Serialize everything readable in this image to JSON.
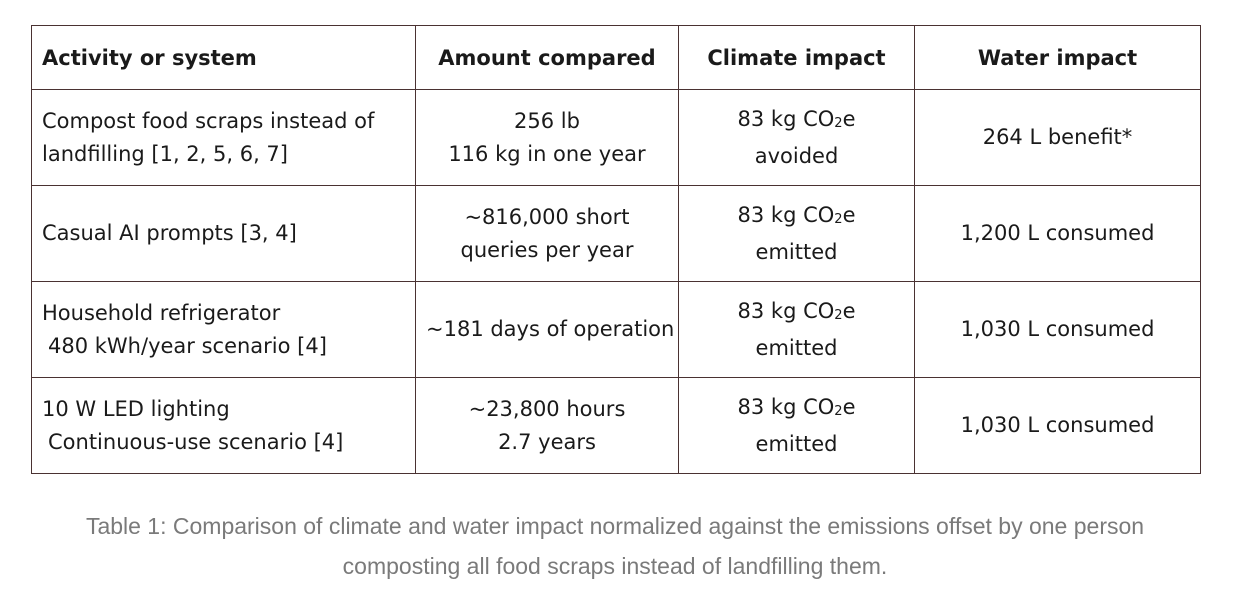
{
  "table": {
    "headers": [
      "Activity or system",
      "Amount compared",
      "Climate impact",
      "Water impact"
    ],
    "rows": [
      {
        "activity": [
          "Compost food scraps instead of",
          "landfilling [1, 2, 5, 6, 7]"
        ],
        "amount": [
          "256 lb",
          "116 kg in one year"
        ],
        "climate": {
          "value": "83 kg CO",
          "sub": "2",
          "unit": "e",
          "effect": "avoided"
        },
        "water": "264 L benefit*"
      },
      {
        "activity": [
          "Casual AI prompts [3, 4]"
        ],
        "amount": [
          "~816,000 short",
          "queries per year"
        ],
        "climate": {
          "value": "83 kg CO",
          "sub": "2",
          "unit": "e",
          "effect": "emitted"
        },
        "water": "1,200 L consumed"
      },
      {
        "activity": [
          "Household refrigerator",
          "480 kWh/year scenario [4]"
        ],
        "amount": [
          "~181 days of operation"
        ],
        "climate": {
          "value": "83 kg CO",
          "sub": "2",
          "unit": "e",
          "effect": "emitted"
        },
        "water": "1,030 L consumed"
      },
      {
        "activity": [
          "10 W LED lighting",
          "Continuous-use scenario [4]"
        ],
        "amount": [
          "~23,800 hours",
          "2.7 years"
        ],
        "climate": {
          "value": "83 kg CO",
          "sub": "2",
          "unit": "e",
          "effect": "emitted"
        },
        "water": "1,030 L consumed"
      }
    ]
  },
  "caption": "Table 1: Comparison of climate and water impact normalized against the emissions offset by one person composting all food scraps instead of landfilling them."
}
